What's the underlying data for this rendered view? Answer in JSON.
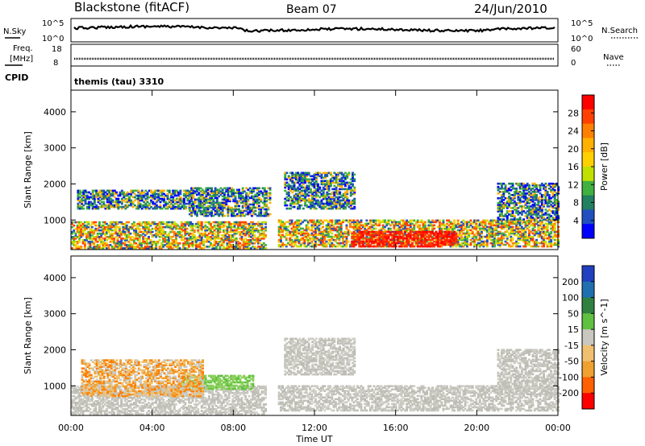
{
  "header": {
    "station": "Blackstone (fitACF)",
    "beam": "Beam 07",
    "date": "24/Jun/2010"
  },
  "noise_panel": {
    "left_label": "N.Sky",
    "right_label": "N.Search",
    "left_ticks": [
      "10^5",
      "10^0"
    ],
    "right_ticks": [
      "10^5",
      "10^0"
    ]
  },
  "freq_panel": {
    "left_label_line1": "Freq.",
    "left_label_line2": "[MHz]",
    "right_label": "Nave",
    "left_ticks": [
      "18",
      "8"
    ],
    "right_ticks": [
      "60",
      "0"
    ]
  },
  "cpid": {
    "label": "CPID",
    "value": "themis (tau) 3310"
  },
  "chart_data": [
    {
      "type": "heatmap",
      "title": "",
      "xlabel": "Time UT",
      "ylabel": "Slant Range [km]",
      "x_ticks": [
        "00:00",
        "04:00",
        "08:00",
        "12:00",
        "16:00",
        "20:00",
        "00:00"
      ],
      "y_ticks": [
        1000,
        2000,
        3000,
        4000
      ],
      "ylim": [
        180,
        4600
      ],
      "colorbar": {
        "label": "Power [dB]",
        "ticks": [
          "28",
          "24",
          "20",
          "16",
          "12",
          "8",
          "4"
        ],
        "colors": [
          "#ff0000",
          "#ff4000",
          "#ff8000",
          "#ffb000",
          "#ffd000",
          "#c0e000",
          "#40b040",
          "#208060",
          "#2050c0",
          "#0000ff"
        ]
      },
      "echo_regions": [
        {
          "t0": 0.0,
          "t1": 9.6,
          "r0": 200,
          "r1": 950,
          "level": "strong"
        },
        {
          "t0": 0.3,
          "t1": 6.0,
          "r0": 1300,
          "r1": 1800,
          "level": "medium"
        },
        {
          "t0": 5.8,
          "t1": 9.8,
          "r0": 1100,
          "r1": 1900,
          "level": "medium"
        },
        {
          "t0": 10.2,
          "t1": 24.0,
          "r0": 250,
          "r1": 1000,
          "level": "strong"
        },
        {
          "t0": 13.8,
          "t1": 19.0,
          "r0": 250,
          "r1": 700,
          "level": "max"
        },
        {
          "t0": 10.5,
          "t1": 14.0,
          "r0": 1300,
          "r1": 2300,
          "level": "medium"
        },
        {
          "t0": 21.0,
          "t1": 24.0,
          "r0": 1000,
          "r1": 2000,
          "level": "medium"
        }
      ]
    },
    {
      "type": "heatmap",
      "title": "",
      "xlabel": "Time UT",
      "ylabel": "Slant Range [km]",
      "x_ticks": [
        "00:00",
        "04:00",
        "08:00",
        "12:00",
        "16:00",
        "20:00",
        "00:00"
      ],
      "y_ticks": [
        1000,
        2000,
        3000,
        4000
      ],
      "ylim": [
        180,
        4600
      ],
      "colorbar": {
        "label": "Velocity [m s^-1]",
        "ticks": [
          "200",
          "100",
          "50",
          "15",
          "-15",
          "-50",
          "-100",
          "-200"
        ],
        "colors": [
          "#2040c0",
          "#2070b0",
          "#308040",
          "#60c040",
          "#c8c8c0",
          "#f0c070",
          "#f0a030",
          "#ff6000",
          "#ff0000"
        ]
      },
      "echo_regions": [
        {
          "t0": 0.0,
          "t1": 9.6,
          "r0": 200,
          "r1": 1000,
          "level": "ground-scatter"
        },
        {
          "t0": 5.5,
          "t1": 9.0,
          "r0": 900,
          "r1": 1300,
          "level": "positive"
        },
        {
          "t0": 0.5,
          "t1": 6.5,
          "r0": 700,
          "r1": 1700,
          "level": "negative"
        },
        {
          "t0": 10.2,
          "t1": 24.0,
          "r0": 300,
          "r1": 1000,
          "level": "ground-scatter"
        },
        {
          "t0": 10.5,
          "t1": 14.0,
          "r0": 1300,
          "r1": 2300,
          "level": "ground-scatter"
        },
        {
          "t0": 21.0,
          "t1": 24.0,
          "r0": 900,
          "r1": 2000,
          "level": "ground-scatter"
        }
      ]
    }
  ]
}
